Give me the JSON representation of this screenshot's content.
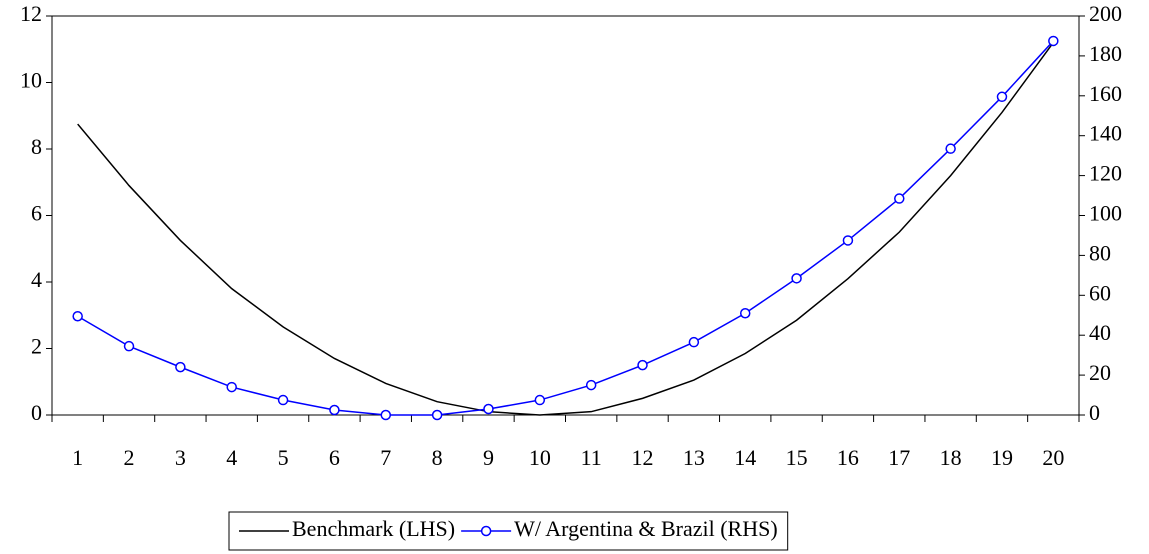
{
  "chart_data": {
    "type": "line",
    "categories": [
      "1",
      "2",
      "3",
      "4",
      "5",
      "6",
      "7",
      "8",
      "9",
      "10",
      "11",
      "12",
      "13",
      "14",
      "15",
      "16",
      "17",
      "18",
      "19",
      "20"
    ],
    "series": [
      {
        "name": "Benchmark (LHS)",
        "color": "#000000",
        "marker": false,
        "values": [
          8.75,
          6.9,
          5.25,
          3.8,
          2.65,
          1.7,
          0.95,
          0.4,
          0.1,
          0,
          0.1,
          0.5,
          1.05,
          1.85,
          2.85,
          4.1,
          5.5,
          7.2,
          9.1,
          11.2
        ]
      },
      {
        "name": "W/ Argentina & Brazil (RHS)",
        "color": "#0000ff",
        "marker": true,
        "axis": "y2",
        "values": [
          49.5,
          34.5,
          24,
          14,
          7.5,
          2.5,
          0,
          0,
          3,
          7.5,
          15,
          25,
          36.5,
          51,
          68.5,
          87.5,
          108.5,
          133.5,
          159.5,
          187.5
        ]
      }
    ],
    "ylim": [
      0,
      12
    ],
    "yticks": [
      0,
      2,
      4,
      6,
      8,
      10,
      12
    ],
    "y2lim": [
      0,
      200
    ],
    "y2ticks": [
      0,
      20,
      40,
      60,
      80,
      100,
      120,
      140,
      160,
      180,
      200
    ],
    "grid": false,
    "legend": "bottom"
  }
}
